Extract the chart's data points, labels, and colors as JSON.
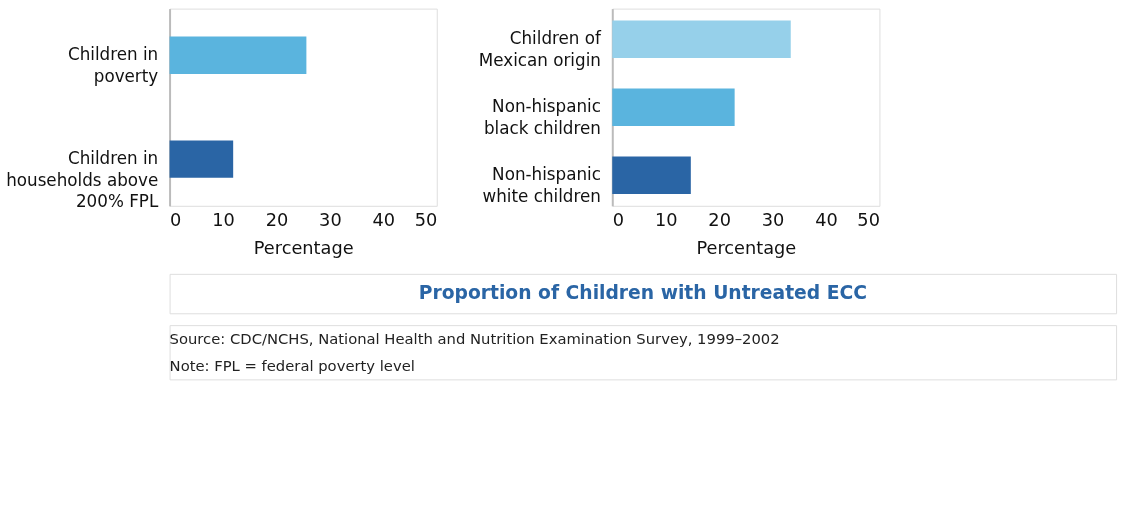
{
  "chart_data": [
    {
      "type": "bar",
      "orientation": "horizontal",
      "xlabel": "Percentage",
      "categories": [
        "Children in poverty",
        "Children in households above 200% FPL"
      ],
      "values": [
        25.6,
        11.9
      ],
      "colors": [
        "#5ab4de",
        "#2a65a5"
      ],
      "xlim": [
        0,
        50
      ],
      "xticks": [
        0,
        10,
        20,
        30,
        40,
        50
      ],
      "grid": false
    },
    {
      "type": "bar",
      "orientation": "horizontal",
      "xlabel": "Percentage",
      "categories": [
        "Children of Mexican origin",
        "Non-hispanic black children",
        "Non-hispanic white children"
      ],
      "values": [
        33.4,
        22.9,
        14.7
      ],
      "colors": [
        "#96d0ea",
        "#5ab4de",
        "#2a65a5"
      ],
      "xlim": [
        0,
        50
      ],
      "xticks": [
        0,
        10,
        20,
        30,
        40,
        50
      ],
      "grid": false
    },
    {
      "type": "other",
      "title": "Proportion of Children with Untreated ECC",
      "annotations": [
        "Source: CDC/NCHS, National Health and Nutrition Examination Survey, 1999–2002",
        "Note: FPL = federal poverty level"
      ]
    }
  ]
}
